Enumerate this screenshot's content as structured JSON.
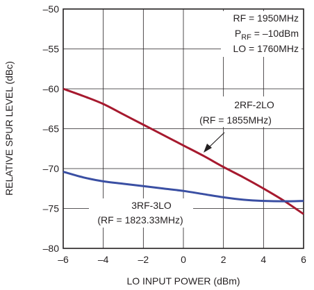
{
  "chart_data": {
    "type": "line",
    "xlabel": "LO INPUT POWER (dBm)",
    "ylabel": "RELATIVE SPUR LEVEL (dBc)",
    "xlim": [
      -6,
      6
    ],
    "ylim": [
      -80,
      -50
    ],
    "xticks": [
      -6,
      -4,
      -2,
      0,
      2,
      4,
      6
    ],
    "yticks": [
      -50,
      -55,
      -60,
      -65,
      -70,
      -75,
      -80
    ],
    "x_tick_labels": [
      "–6",
      "–4",
      "–2",
      "0",
      "2",
      "4",
      "6"
    ],
    "y_tick_labels": [
      "–50",
      "–55",
      "–60",
      "–65",
      "–70",
      "–75",
      "–80"
    ],
    "grid": true,
    "conditions": {
      "rf": "RF = 1950MHz",
      "prf_prefix": "P",
      "prf_sub": "RF",
      "prf_rest": " = –10dBm",
      "lo": "LO = 1760MHz"
    },
    "series": [
      {
        "name": "2RF-2LO",
        "annotation": "(RF = 1855MHz)",
        "color": "#a6192e",
        "x": [
          -6,
          -5,
          -4,
          -3,
          -2,
          -1,
          0,
          1,
          2,
          3,
          4,
          5,
          6
        ],
        "y": [
          -60,
          -60.9,
          -61.9,
          -63.2,
          -64.5,
          -65.8,
          -67.1,
          -68.4,
          -69.8,
          -71.1,
          -72.5,
          -74.0,
          -75.7
        ]
      },
      {
        "name": "3RF-3LO",
        "annotation": "(RF = 1823.33MHz)",
        "color": "#3a4fa3",
        "x": [
          -6,
          -5,
          -4,
          -3,
          -2,
          -1,
          0,
          1,
          2,
          3,
          4,
          5,
          6
        ],
        "y": [
          -70.4,
          -71.1,
          -71.6,
          -71.9,
          -72.2,
          -72.5,
          -72.8,
          -73.2,
          -73.6,
          -73.9,
          -74.05,
          -74.1,
          -74.05
        ]
      }
    ]
  }
}
